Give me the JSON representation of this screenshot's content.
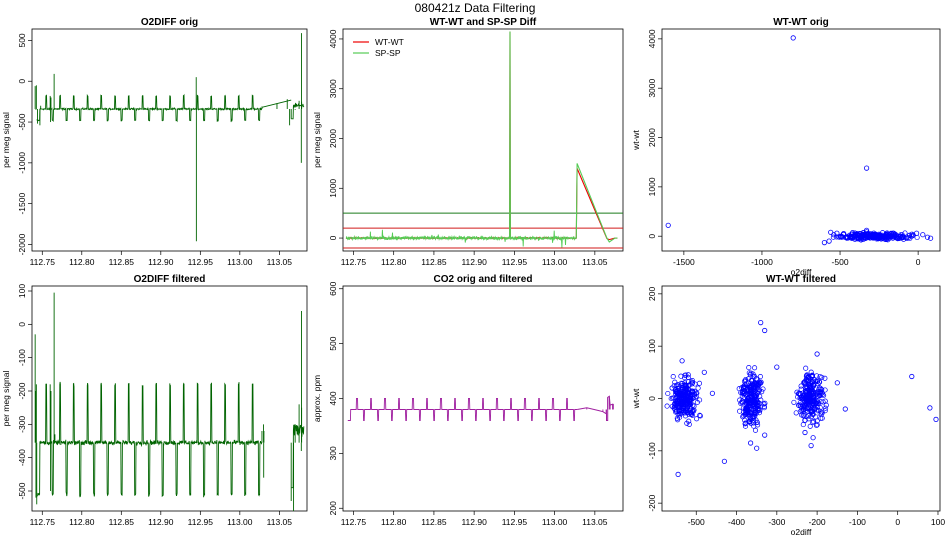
{
  "figure": {
    "title": "080421z   Data Filtering"
  },
  "chart_data": [
    {
      "id": "o2diff-orig",
      "type": "line",
      "title": "O2DIFF orig",
      "xlabel": "",
      "ylabel": "per meg signal",
      "xlim": [
        112.737,
        113.085
      ],
      "ylim": [
        -2080,
        640
      ],
      "xticks": [
        112.75,
        112.8,
        112.85,
        112.9,
        112.95,
        113.0,
        113.05
      ],
      "yticks": [
        500,
        0,
        -500,
        -1000,
        -1500,
        -2000
      ],
      "color": "#006400",
      "baseline": -340,
      "low_level": -480,
      "high_level": -180,
      "cycle_period": 0.0174,
      "cycle_start": 112.745,
      "gaps": [
        [
          113.028,
          113.065
        ],
        [
          113.081,
          113.085
        ]
      ],
      "series": [
        {
          "x": [
            112.741,
            112.742,
            112.7425,
            112.744,
            112.747,
            112.748,
            112.76,
            112.7605,
            112.761,
            112.765,
            112.7655,
            112.766,
            112.9448,
            112.945,
            112.9452,
            113.028,
            113.047,
            113.06,
            113.063,
            113.065,
            113.07,
            113.075,
            113.0778,
            113.078,
            113.0782
          ],
          "y": [
            -60,
            -350,
            -50,
            -520,
            -540,
            -300,
            -180,
            -500,
            -200,
            90,
            -350,
            -330,
            50,
            -1960,
            -350,
            -310,
            -270,
            -220,
            -540,
            -460,
            -350,
            -240,
            -1000,
            590,
            -250
          ]
        }
      ]
    },
    {
      "id": "wtwt-spsp-diff",
      "type": "line",
      "title": "WT-WT and SP-SP Diff",
      "xlabel": "",
      "ylabel": "per meg signal",
      "xlim": [
        112.737,
        113.085
      ],
      "ylim": [
        -260,
        4200
      ],
      "xticks": [
        112.75,
        112.8,
        112.85,
        112.9,
        112.95,
        113.0,
        113.05
      ],
      "yticks": [
        0,
        1000,
        2000,
        3000,
        4000
      ],
      "hlines": [
        {
          "y": 500,
          "color": "#1a7a1a"
        },
        {
          "y": 200,
          "color": "#d11a1a"
        },
        {
          "y": -200,
          "color": "#d11a1a"
        }
      ],
      "series": [
        {
          "name": "WT-WT",
          "color": "#ee0000",
          "x": [
            112.741,
            112.944,
            112.9445,
            112.945,
            113.027,
            113.028,
            113.065,
            113.068,
            113.075,
            113.078
          ],
          "y": [
            0,
            0,
            4150,
            0,
            0,
            1400,
            -10,
            -30,
            0,
            0
          ]
        },
        {
          "name": "SP-SP",
          "color": "#55cc55",
          "x": [
            112.741,
            112.944,
            112.9445,
            112.945,
            113.027,
            113.028,
            113.065,
            113.068,
            113.075,
            113.078
          ],
          "y": [
            0,
            0,
            4150,
            0,
            0,
            1500,
            0,
            -80,
            0,
            0
          ]
        }
      ]
    },
    {
      "id": "wtwt-orig",
      "type": "scatter",
      "title": "WT-WT orig",
      "xlabel": "o2diff",
      "ylabel": "wt-wt",
      "xlim": [
        -1640,
        140
      ],
      "ylim": [
        -300,
        4200
      ],
      "xticks": [
        -1500,
        -1000,
        -500,
        0
      ],
      "yticks": [
        0,
        1000,
        2000,
        3000,
        4000
      ],
      "color": "#0000ff",
      "clusters": [
        {
          "x": [
            -560,
            0
          ],
          "y": [
            -80,
            80
          ]
        }
      ],
      "series": [
        {
          "x": [
            -1600,
            -800,
            -330,
            30,
            60,
            80,
            -570,
            -560,
            -600,
            -540,
            -520,
            -330,
            -350,
            -10,
            -40,
            -330
          ],
          "y": [
            220,
            4020,
            1380,
            30,
            -20,
            -40,
            -100,
            80,
            -130,
            30,
            60,
            120,
            -60,
            60,
            40,
            90
          ]
        }
      ]
    },
    {
      "id": "o2diff-filtered",
      "type": "line",
      "title": "O2DIFF filtered",
      "xlabel": "",
      "ylabel": "per meg signal",
      "xlim": [
        112.737,
        113.085
      ],
      "ylim": [
        -560,
        115
      ],
      "xticks": [
        112.75,
        112.8,
        112.85,
        112.9,
        112.95,
        113.0,
        113.05
      ],
      "yticks": [
        100,
        0,
        -100,
        -200,
        -300,
        -400,
        -500
      ],
      "color": "#006400",
      "baseline": -355,
      "low_level": -510,
      "high_level": -180,
      "cycle_period": 0.0174,
      "cycle_start": 112.745,
      "gaps": [
        [
          113.028,
          113.065
        ],
        [
          113.081,
          113.085
        ]
      ],
      "series": [
        {
          "x": [
            112.741,
            112.7415,
            112.742,
            112.7425,
            112.743,
            112.76,
            112.7605,
            112.761,
            112.765,
            112.7655,
            112.766,
            113.028,
            113.03,
            113.0302,
            113.0305,
            113.065,
            113.068,
            113.07,
            113.075,
            113.0778,
            113.078,
            113.0782
          ],
          "y": [
            -30,
            -200,
            -520,
            -180,
            -540,
            -180,
            -500,
            -200,
            95,
            -350,
            -330,
            -320,
            -300,
            -460,
            -320,
            -530,
            -560,
            -300,
            -240,
            -380,
            40,
            -250
          ]
        }
      ]
    },
    {
      "id": "co2-orig-filtered",
      "type": "line",
      "title": "CO2 orig and filtered",
      "xlabel": "",
      "ylabel": "approx. ppm",
      "xlim": [
        112.737,
        113.085
      ],
      "ylim": [
        195,
        605
      ],
      "xticks": [
        112.75,
        112.8,
        112.85,
        112.9,
        112.95,
        113.0,
        113.05
      ],
      "yticks": [
        200,
        300,
        400,
        500,
        600
      ],
      "color": "#a020a0",
      "baseline": 380,
      "low_level": 360,
      "high_level": 400,
      "cycle_period": 0.0174,
      "cycle_start": 112.745,
      "series": [
        {
          "x": [
            112.741,
            113.028,
            113.04,
            113.06,
            113.064,
            113.0645,
            113.066,
            113.068,
            113.069,
            113.072,
            113.073
          ],
          "y": [
            380,
            380,
            383,
            376,
            372,
            360,
            402,
            404,
            388,
            390,
            390
          ]
        }
      ]
    },
    {
      "id": "wtwt-filtered",
      "type": "scatter",
      "title": "WT-WT filtered",
      "xlabel": "o2diff",
      "ylabel": "wt-wt",
      "xlim": [
        -585,
        105
      ],
      "ylim": [
        -215,
        215
      ],
      "xticks": [
        -500,
        -400,
        -300,
        -200,
        -100,
        0,
        100
      ],
      "yticks": [
        200,
        100,
        0,
        -100,
        -200
      ],
      "color": "#0000ff",
      "clusters": [
        {
          "x": [
            -570,
            -490
          ],
          "y": [
            -45,
            45
          ]
        },
        {
          "x": [
            -395,
            -330
          ],
          "y": [
            -60,
            60
          ]
        },
        {
          "x": [
            -255,
            -175
          ],
          "y": [
            -50,
            55
          ]
        }
      ],
      "series": [
        {
          "x": [
            -545,
            -535,
            -430,
            -480,
            -340,
            -330,
            -350,
            -200,
            -230,
            -210,
            -300,
            -150,
            -130,
            -560,
            -460,
            -250,
            -180,
            35,
            80,
            95,
            -365,
            -330,
            -215
          ],
          "y": [
            -145,
            72,
            -120,
            50,
            145,
            130,
            -95,
            85,
            -65,
            -75,
            60,
            30,
            -20,
            20,
            10,
            12,
            -5,
            42,
            -18,
            -40,
            -85,
            -70,
            -90
          ]
        }
      ]
    }
  ]
}
